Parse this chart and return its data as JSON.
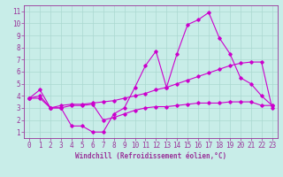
{
  "xlabel": "Windchill (Refroidissement éolien,°C)",
  "ylabel": "",
  "background_color": "#c8ede8",
  "grid_color": "#aad8d0",
  "line_color": "#cc00cc",
  "xlim": [
    -0.5,
    23.5
  ],
  "ylim": [
    0.5,
    11.5
  ],
  "xticks": [
    0,
    1,
    2,
    3,
    4,
    5,
    6,
    7,
    8,
    9,
    10,
    11,
    12,
    13,
    14,
    15,
    16,
    17,
    18,
    19,
    20,
    21,
    22,
    23
  ],
  "yticks": [
    1,
    2,
    3,
    4,
    5,
    6,
    7,
    8,
    9,
    10,
    11
  ],
  "line1_x": [
    0,
    1,
    2,
    3,
    4,
    5,
    6,
    7,
    8,
    9,
    10,
    11,
    12,
    13,
    14,
    15,
    16,
    17,
    18,
    19,
    20,
    21,
    22,
    23
  ],
  "line1_y": [
    3.8,
    4.5,
    3.0,
    3.0,
    1.5,
    1.5,
    1.0,
    1.0,
    2.5,
    3.0,
    4.7,
    6.5,
    7.7,
    4.7,
    7.5,
    9.9,
    10.3,
    10.9,
    8.8,
    7.5,
    5.5,
    5.0,
    4.0,
    3.2
  ],
  "line2_x": [
    0,
    1,
    2,
    3,
    4,
    5,
    6,
    7,
    8,
    9,
    10,
    11,
    12,
    13,
    14,
    15,
    16,
    17,
    18,
    19,
    20,
    21,
    22,
    23
  ],
  "line2_y": [
    3.8,
    4.0,
    3.0,
    3.2,
    3.3,
    3.3,
    3.4,
    3.5,
    3.6,
    3.8,
    4.0,
    4.2,
    4.5,
    4.7,
    5.0,
    5.3,
    5.6,
    5.9,
    6.2,
    6.5,
    6.7,
    6.8,
    6.8,
    3.0
  ],
  "line3_x": [
    0,
    1,
    2,
    3,
    4,
    5,
    6,
    7,
    8,
    9,
    10,
    11,
    12,
    13,
    14,
    15,
    16,
    17,
    18,
    19,
    20,
    21,
    22,
    23
  ],
  "line3_y": [
    3.8,
    3.8,
    3.0,
    3.0,
    3.2,
    3.2,
    3.3,
    2.0,
    2.2,
    2.5,
    2.8,
    3.0,
    3.1,
    3.1,
    3.2,
    3.3,
    3.4,
    3.4,
    3.4,
    3.5,
    3.5,
    3.5,
    3.2,
    3.2
  ],
  "tick_fontsize": 5.5,
  "xlabel_fontsize": 5.5,
  "tick_color": "#993399",
  "spine_color": "#993399"
}
